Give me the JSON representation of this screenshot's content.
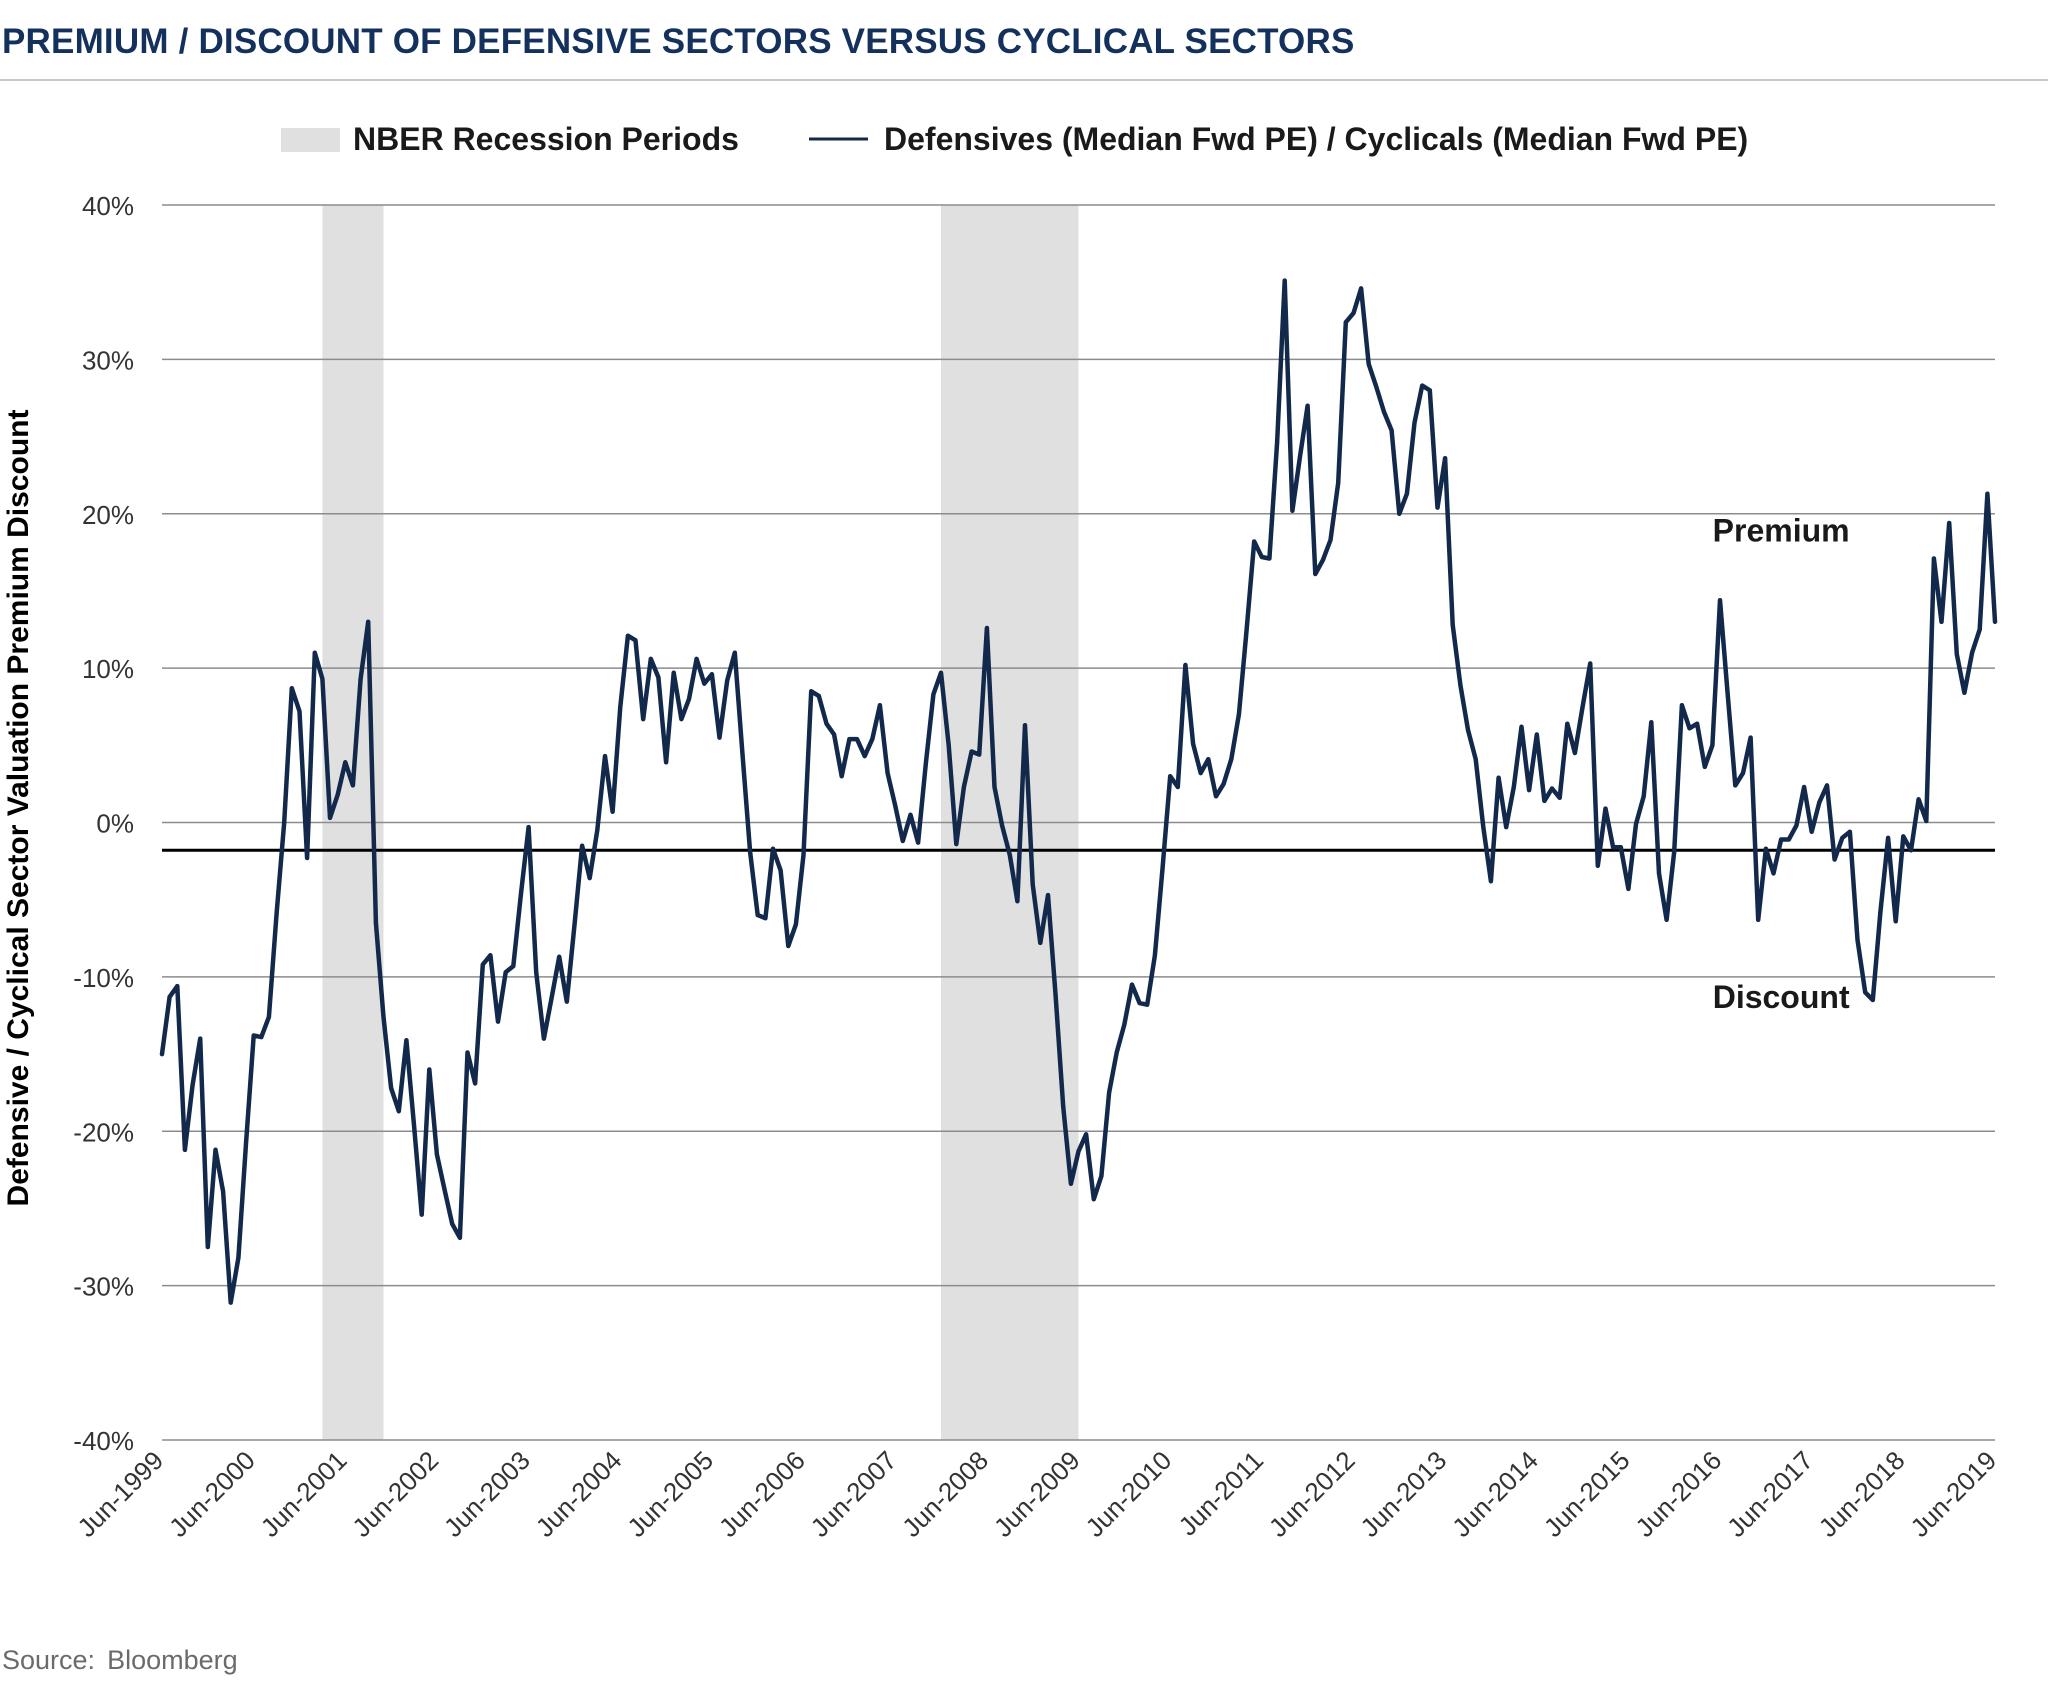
{
  "title": "PREMIUM / DISCOUNT OF DEFENSIVE SECTORS VERSUS CYCLICAL SECTORS",
  "source": {
    "label": "Source:",
    "value": "Bloomberg"
  },
  "colors": {
    "line": "#13294b",
    "recession": "#e0e0e0",
    "title": "#13315c",
    "grid": "#8c8c8c",
    "reference": "#000000"
  },
  "chart_data": {
    "type": "line",
    "title": "PREMIUM / DISCOUNT OF DEFENSIVE SECTORS VERSUS CYCLICAL SECTORS",
    "xlabel": "",
    "ylabel": "Defensive / Cyclical Sector Valuation Premium Discount",
    "x_range": [
      "Jun-1999",
      "Jun-2019"
    ],
    "ylim": [
      -40,
      40
    ],
    "y_ticks": [
      40,
      30,
      20,
      10,
      0,
      -10,
      -20,
      -30,
      -40
    ],
    "y_tick_labels": [
      "40%",
      "30%",
      "20%",
      "10%",
      "0%",
      "-10%",
      "-20%",
      "-30%",
      "-40%"
    ],
    "x_tick_labels": [
      "Jun-1999",
      "Jun-2000",
      "Jun-2001",
      "Jun-2002",
      "Jun-2003",
      "Jun-2004",
      "Jun-2005",
      "Jun-2006",
      "Jun-2007",
      "Jun-2008",
      "Jun-2009",
      "Jun-2010",
      "Jun-2011",
      "Jun-2012",
      "Jun-2013",
      "Jun-2014",
      "Jun-2015",
      "Jun-2016",
      "Jun-2017",
      "Jun-2018",
      "Jun-2019"
    ],
    "grid": true,
    "legend_position": "top",
    "legend": [
      {
        "type": "area",
        "label": "NBER Recession Periods"
      },
      {
        "type": "line",
        "label": "Defensives (Median Fwd PE) / Cyclicals (Median Fwd PE)"
      }
    ],
    "recessions": [
      {
        "start": "Mar-2001",
        "end": "Nov-2001"
      },
      {
        "start": "Dec-2007",
        "end": "Jun-2009"
      }
    ],
    "reference_line": {
      "y": -1.8
    },
    "annotations": [
      {
        "text": "Premium",
        "x": "Feb-2017",
        "y": 18.2
      },
      {
        "text": "Discount",
        "x": "Feb-2017",
        "y": -12
      }
    ],
    "series": [
      {
        "name": "Defensives (Median Fwd PE) / Cyclicals (Median Fwd PE)",
        "x": [
          "Jun-1999",
          "Jul-1999",
          "Aug-1999",
          "Sep-1999",
          "Oct-1999",
          "Nov-1999",
          "Dec-1999",
          "Jan-2000",
          "Feb-2000",
          "Mar-2000",
          "Apr-2000",
          "May-2000",
          "Jun-2000",
          "Jul-2000",
          "Aug-2000",
          "Sep-2000",
          "Oct-2000",
          "Nov-2000",
          "Dec-2000",
          "Jan-2001",
          "Feb-2001",
          "Mar-2001",
          "Apr-2001",
          "May-2001",
          "Jun-2001",
          "Jul-2001",
          "Aug-2001",
          "Sep-2001",
          "Oct-2001",
          "Nov-2001",
          "Dec-2001",
          "Jan-2002",
          "Feb-2002",
          "Mar-2002",
          "Apr-2002",
          "May-2002",
          "Jun-2002",
          "Jul-2002",
          "Aug-2002",
          "Sep-2002",
          "Oct-2002",
          "Nov-2002",
          "Dec-2002",
          "Jan-2003",
          "Feb-2003",
          "Mar-2003",
          "Apr-2003",
          "May-2003",
          "Jun-2003",
          "Jul-2003",
          "Aug-2003",
          "Sep-2003",
          "Oct-2003",
          "Nov-2003",
          "Dec-2003",
          "Jan-2004",
          "Feb-2004",
          "Mar-2004",
          "Apr-2004",
          "May-2004",
          "Jun-2004",
          "Jul-2004",
          "Aug-2004",
          "Sep-2004",
          "Oct-2004",
          "Nov-2004",
          "Dec-2004",
          "Jan-2005",
          "Feb-2005",
          "Mar-2005",
          "Apr-2005",
          "May-2005",
          "Jun-2005",
          "Jul-2005",
          "Aug-2005",
          "Sep-2005",
          "Oct-2005",
          "Nov-2005",
          "Dec-2005",
          "Jan-2006",
          "Feb-2006",
          "Mar-2006",
          "Apr-2006",
          "May-2006",
          "Jun-2006",
          "Jul-2006",
          "Aug-2006",
          "Sep-2006",
          "Oct-2006",
          "Nov-2006",
          "Dec-2006",
          "Jan-2007",
          "Feb-2007",
          "Mar-2007",
          "Apr-2007",
          "May-2007",
          "Jun-2007",
          "Jul-2007",
          "Aug-2007",
          "Sep-2007",
          "Oct-2007",
          "Nov-2007",
          "Dec-2007",
          "Jan-2008",
          "Feb-2008",
          "Mar-2008",
          "Apr-2008",
          "May-2008",
          "Jun-2008",
          "Jul-2008",
          "Aug-2008",
          "Sep-2008",
          "Oct-2008",
          "Nov-2008",
          "Dec-2008",
          "Jan-2009",
          "Feb-2009",
          "Mar-2009",
          "Apr-2009",
          "May-2009",
          "Jun-2009",
          "Jul-2009",
          "Aug-2009",
          "Sep-2009",
          "Oct-2009",
          "Nov-2009",
          "Dec-2009",
          "Jan-2010",
          "Feb-2010",
          "Mar-2010",
          "Apr-2010",
          "May-2010",
          "Jun-2010",
          "Jul-2010",
          "Aug-2010",
          "Sep-2010",
          "Oct-2010",
          "Nov-2010",
          "Dec-2010",
          "Jan-2011",
          "Feb-2011",
          "Mar-2011",
          "Apr-2011",
          "May-2011",
          "Jun-2011",
          "Jul-2011",
          "Aug-2011",
          "Sep-2011",
          "Oct-2011",
          "Nov-2011",
          "Dec-2011",
          "Jan-2012",
          "Feb-2012",
          "Mar-2012",
          "Apr-2012",
          "May-2012",
          "Jun-2012",
          "Jul-2012",
          "Aug-2012",
          "Sep-2012",
          "Oct-2012",
          "Nov-2012",
          "Dec-2012",
          "Jan-2013",
          "Feb-2013",
          "Mar-2013",
          "Apr-2013",
          "May-2013",
          "Jun-2013",
          "Jul-2013",
          "Aug-2013",
          "Sep-2013",
          "Oct-2013",
          "Nov-2013",
          "Dec-2013",
          "Jan-2014",
          "Feb-2014",
          "Mar-2014",
          "Apr-2014",
          "May-2014",
          "Jun-2014",
          "Jul-2014",
          "Aug-2014",
          "Sep-2014",
          "Oct-2014",
          "Nov-2014",
          "Dec-2014",
          "Jan-2015",
          "Feb-2015",
          "Mar-2015",
          "Apr-2015",
          "May-2015",
          "Jun-2015",
          "Jul-2015",
          "Aug-2015",
          "Sep-2015",
          "Oct-2015",
          "Nov-2015",
          "Dec-2015",
          "Jan-2016",
          "Feb-2016",
          "Mar-2016",
          "Apr-2016",
          "May-2016",
          "Jun-2016",
          "Jul-2016",
          "Aug-2016",
          "Sep-2016",
          "Oct-2016",
          "Nov-2016",
          "Dec-2016",
          "Jan-2017",
          "Feb-2017",
          "Mar-2017",
          "Apr-2017",
          "May-2017",
          "Jun-2017",
          "Jul-2017",
          "Aug-2017",
          "Sep-2017",
          "Oct-2017",
          "Nov-2017",
          "Dec-2017",
          "Jan-2018",
          "Feb-2018",
          "Mar-2018",
          "Apr-2018",
          "May-2018",
          "Jun-2018",
          "Jul-2018",
          "Aug-2018",
          "Sep-2018",
          "Oct-2018",
          "Nov-2018",
          "Dec-2018",
          "Jan-2019",
          "Feb-2019",
          "Mar-2019",
          "Apr-2019",
          "May-2019",
          "Jun-2019"
        ],
        "y": [
          -15,
          -11.3,
          -10.6,
          -21.2,
          -17,
          -14,
          -27.5,
          -21.2,
          -23.9,
          -31.1,
          -28.2,
          -20.8,
          -13.8,
          -13.9,
          -12.6,
          -5.9,
          0,
          8.7,
          7.2,
          -2.3,
          11,
          9.3,
          0.3,
          1.8,
          3.9,
          2.4,
          9.3,
          13,
          -6.5,
          -12.6,
          -17.2,
          -18.7,
          -14.1,
          -19.6,
          -25.4,
          -16,
          -21.5,
          -23.8,
          -26,
          -26.9,
          -14.9,
          -16.9,
          -9.2,
          -8.6,
          -12.9,
          -9.7,
          -9.3,
          -4.6,
          -0.3,
          -9.7,
          -14,
          -11.4,
          -8.7,
          -11.6,
          -6.7,
          -1.5,
          -3.6,
          -0.5,
          4.3,
          0.7,
          7.5,
          12.1,
          11.8,
          6.7,
          10.6,
          9.4,
          3.9,
          9.7,
          6.7,
          8,
          10.6,
          9,
          9.6,
          5.5,
          9.2,
          11,
          4.5,
          -1.9,
          -6,
          -6.2,
          -1.7,
          -3.1,
          -8,
          -6.6,
          -2.1,
          8.5,
          8.2,
          6.4,
          5.7,
          3,
          5.4,
          5.4,
          4.3,
          5.4,
          7.6,
          3.2,
          1.1,
          -1.2,
          0.5,
          -1.3,
          3.8,
          8.3,
          9.7,
          5,
          -1.4,
          2.3,
          4.6,
          4.4,
          12.6,
          2.3,
          -0.2,
          -2.1,
          -5.1,
          6.3,
          -4,
          -7.8,
          -4.7,
          -11.2,
          -18.4,
          -23.4,
          -21.3,
          -20.2,
          -24.4,
          -22.9,
          -17.5,
          -14.9,
          -13.1,
          -10.5,
          -11.7,
          -11.8,
          -8.6,
          -3,
          3,
          2.3,
          10.2,
          5.1,
          3.2,
          4.1,
          1.7,
          2.5,
          4.1,
          7,
          12.4,
          18.2,
          17.2,
          17.1,
          24.6,
          35.1,
          20.2,
          23.7,
          27,
          16.1,
          17,
          18.3,
          22,
          32.4,
          33,
          34.6,
          29.7,
          28.2,
          26.6,
          25.4,
          20,
          21.3,
          25.9,
          28.3,
          28,
          20.4,
          23.6,
          12.8,
          8.9,
          6,
          4.1,
          -0.3,
          -3.8,
          2.9,
          -0.3,
          2.3,
          6.2,
          2.1,
          5.7,
          1.4,
          2.2,
          1.6,
          6.4,
          4.5,
          7.5,
          10.3,
          -2.8,
          0.9,
          -1.6,
          -1.6,
          -4.3,
          -0.1,
          1.7,
          6.5,
          -3.3,
          -6.3,
          -1.9,
          7.6,
          6.1,
          6.4,
          3.6,
          5,
          14.4,
          8.3,
          2.4,
          3.2,
          5.5,
          -6.3,
          -1.7,
          -3.3,
          -1.1,
          -1.1,
          -0.2,
          2.3,
          -0.6,
          1.3,
          2.4,
          -2.4,
          -1,
          -0.6,
          -7.6,
          -11,
          -11.5,
          -5.8,
          -1,
          -6.4,
          -0.9,
          -1.8,
          1.5,
          0.1,
          17.1,
          13,
          19.4,
          10.9,
          8.4,
          11,
          12.5,
          21.3,
          13
        ]
      }
    ]
  }
}
